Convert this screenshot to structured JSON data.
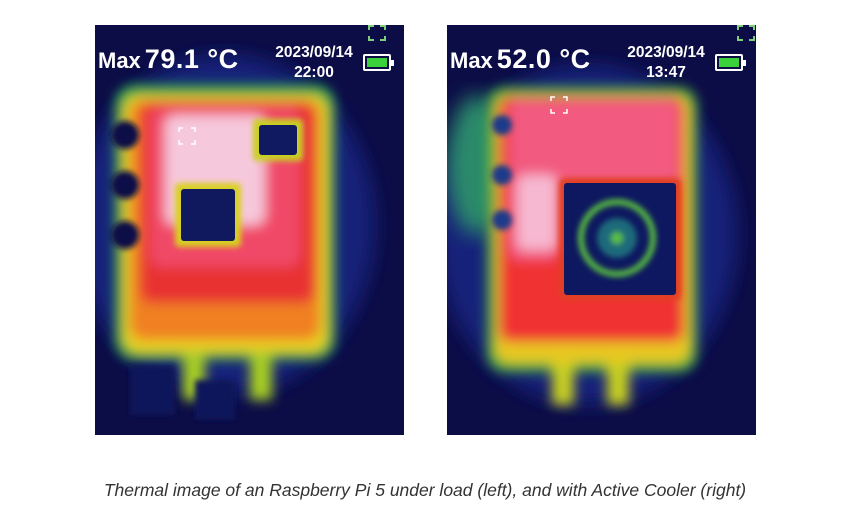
{
  "figures": [
    {
      "id": "left",
      "max_label": "Max",
      "max_value": "79.1 °C",
      "date": "2023/09/14",
      "time": "22:00"
    },
    {
      "id": "right",
      "max_label": "Max",
      "max_value": "52.0 °C",
      "date": "2023/09/14",
      "time": "13:47"
    }
  ],
  "icons": {
    "expand": "expand-corners-icon",
    "battery": "battery-full-icon",
    "target": "focus-bracket-icon"
  },
  "colors": {
    "battery": "#3bd13b",
    "background": "#0a0a3a"
  },
  "caption": "Thermal image of an Raspberry Pi 5 under load (left), and with Active Cooler (right)"
}
